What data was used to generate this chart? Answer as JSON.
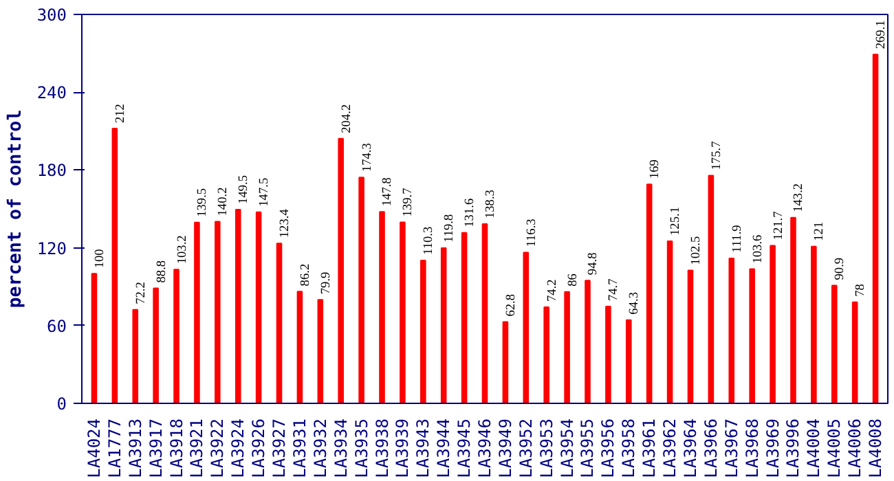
{
  "chart_data": {
    "type": "bar",
    "ylabel": "percent of control",
    "categories": [
      "LA4024",
      "LA1777",
      "LA3913",
      "LA3917",
      "LA3918",
      "LA3921",
      "LA3922",
      "LA3924",
      "LA3926",
      "LA3927",
      "LA3931",
      "LA3932",
      "LA3934",
      "LA3935",
      "LA3938",
      "LA3939",
      "LA3943",
      "LA3944",
      "LA3945",
      "LA3946",
      "LA3949",
      "LA3952",
      "LA3953",
      "LA3954",
      "LA3955",
      "LA3956",
      "LA3958",
      "LA3961",
      "LA3962",
      "LA3964",
      "LA3966",
      "LA3967",
      "LA3968",
      "LA3969",
      "LA3996",
      "LA4004",
      "LA4005",
      "LA4006",
      "LA4008"
    ],
    "values": [
      100,
      212,
      72.2,
      88.8,
      103.2,
      139.5,
      140.2,
      149.5,
      147.5,
      123.4,
      86.2,
      79.9,
      204.2,
      174.3,
      147.8,
      139.7,
      110.3,
      119.8,
      131.6,
      138.3,
      62.8,
      116.3,
      74.2,
      86,
      94.8,
      74.7,
      64.3,
      169,
      125.1,
      102.5,
      175.7,
      111.9,
      103.6,
      121.7,
      143.2,
      121,
      90.9,
      78,
      269.1
    ],
    "color": "#ff0000",
    "data_labels": true,
    "ylim": [
      0,
      300
    ],
    "yticks": [
      0,
      60,
      120,
      180,
      240,
      300
    ],
    "grid": false
  }
}
